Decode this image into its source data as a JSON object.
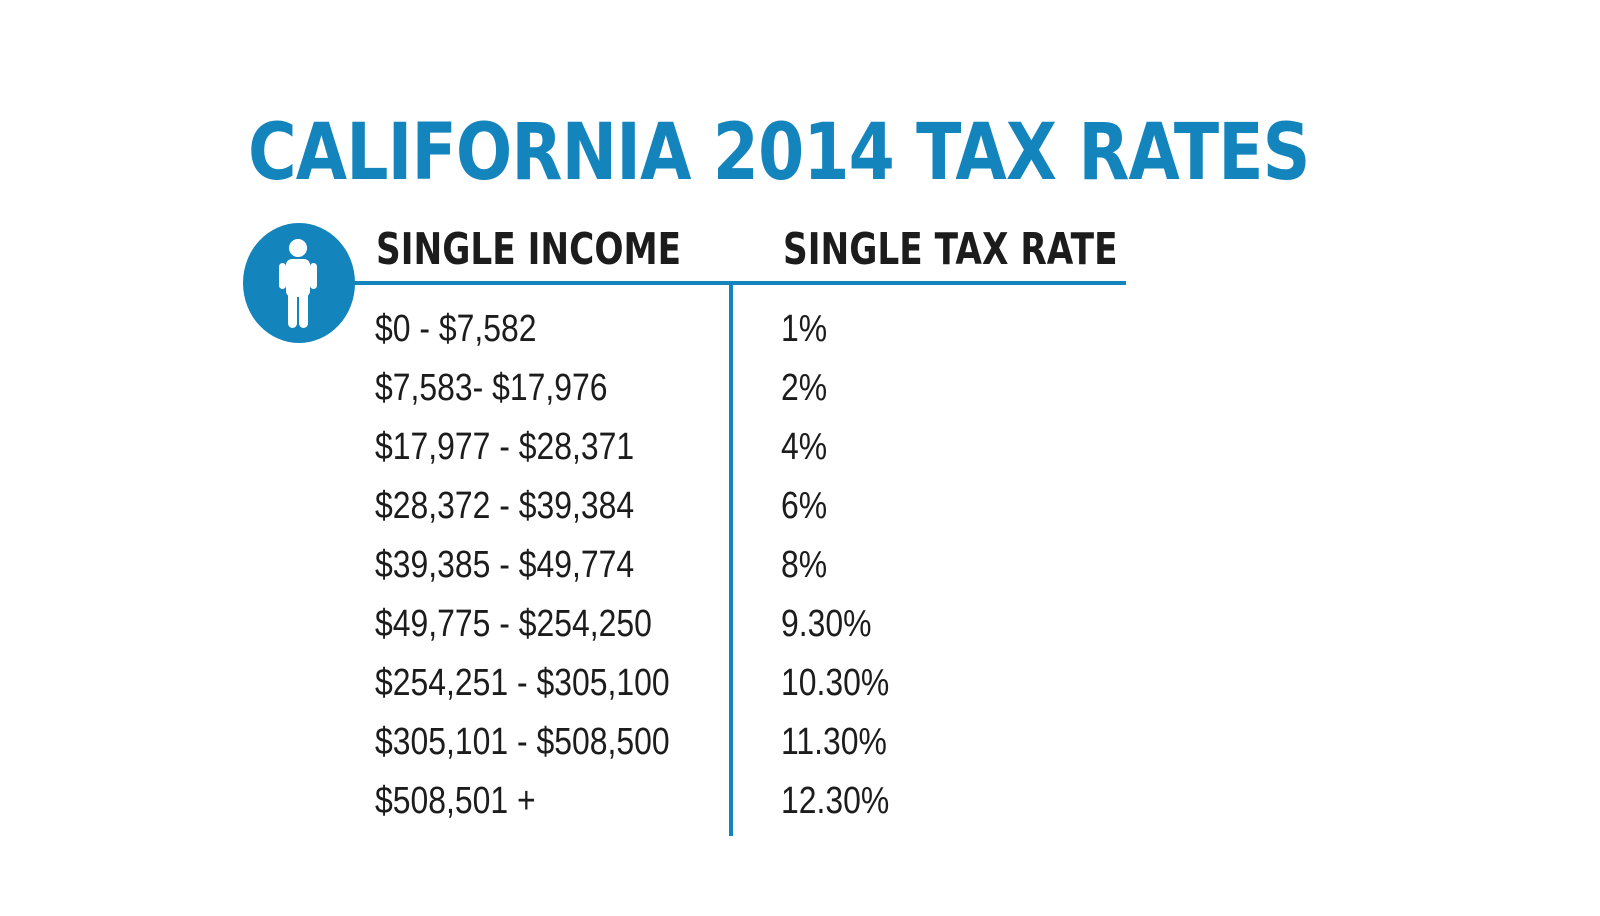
{
  "chart_data": {
    "type": "table",
    "title": "CALIFORNIA 2014 TAX RATES",
    "columns": [
      "SINGLE INCOME",
      "SINGLE TAX RATE"
    ],
    "rows": [
      {
        "income": "$0 - $7,582",
        "rate": "1%"
      },
      {
        "income": "$7,583- $17,976",
        "rate": "2%"
      },
      {
        "income": "$17,977 - $28,371",
        "rate": "4%"
      },
      {
        "income": "$28,372 - $39,384",
        "rate": "6%"
      },
      {
        "income": "$39,385 - $49,774",
        "rate": "8%"
      },
      {
        "income": "$49,775 - $254,250",
        "rate": "9.30%"
      },
      {
        "income": "$254,251 - $305,100",
        "rate": "10.30%"
      },
      {
        "income": "$305,101 - $508,500",
        "rate": "11.30%"
      },
      {
        "income": "$508,501 +",
        "rate": "12.30%"
      }
    ]
  },
  "icon": "person-icon",
  "colors": {
    "accent": "#1384bc",
    "text": "#1c1c1c",
    "background": "#ffffff"
  }
}
